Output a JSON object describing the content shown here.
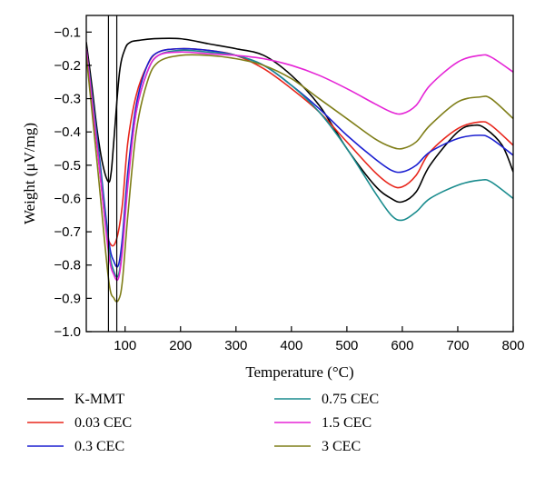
{
  "chart_data": {
    "type": "line",
    "title": "",
    "xlabel": "Temperature (°C)",
    "ylabel": "Weight (μV/mg)",
    "xlim": [
      30,
      800
    ],
    "ylim": [
      -1.0,
      -0.05
    ],
    "xticks": [
      100,
      200,
      300,
      400,
      500,
      600,
      700,
      800
    ],
    "xtick_labels": [
      "100",
      "200",
      "300",
      "400",
      "500",
      "600",
      "700",
      "800"
    ],
    "yticks": [
      -1.0,
      -0.9,
      -0.8,
      -0.7,
      -0.6,
      -0.5,
      -0.4,
      -0.3,
      -0.2,
      -0.1
    ],
    "ytick_labels": [
      "−1.0",
      "−0.9",
      "−0.8",
      "−0.7",
      "−0.6",
      "−0.5",
      "−0.4",
      "−0.3",
      "−0.2",
      "−0.1"
    ],
    "grid": false,
    "legend_position": "bottom",
    "vertical_lines": [
      70,
      85
    ],
    "series": [
      {
        "name": "K-MMT",
        "color": "#000000",
        "x": [
          30,
          40,
          50,
          60,
          70,
          75,
          80,
          90,
          100,
          110,
          125,
          150,
          200,
          250,
          300,
          350,
          400,
          450,
          500,
          550,
          580,
          600,
          625,
          650,
          700,
          730,
          750,
          780,
          800
        ],
        "y": [
          -0.13,
          -0.26,
          -0.4,
          -0.5,
          -0.55,
          -0.52,
          -0.42,
          -0.22,
          -0.15,
          -0.13,
          -0.125,
          -0.12,
          -0.12,
          -0.135,
          -0.15,
          -0.17,
          -0.23,
          -0.32,
          -0.45,
          -0.56,
          -0.6,
          -0.61,
          -0.58,
          -0.5,
          -0.4,
          -0.38,
          -0.39,
          -0.44,
          -0.52
        ]
      },
      {
        "name": "0.03 CEC",
        "color": "#e8261c",
        "x": [
          30,
          50,
          65,
          75,
          85,
          95,
          105,
          120,
          140,
          160,
          200,
          250,
          300,
          350,
          400,
          450,
          500,
          550,
          580,
          600,
          625,
          650,
          700,
          740,
          760,
          800
        ],
        "y": [
          -0.17,
          -0.45,
          -0.68,
          -0.74,
          -0.72,
          -0.62,
          -0.43,
          -0.29,
          -0.2,
          -0.16,
          -0.15,
          -0.155,
          -0.17,
          -0.21,
          -0.27,
          -0.34,
          -0.43,
          -0.52,
          -0.56,
          -0.565,
          -0.53,
          -0.46,
          -0.39,
          -0.37,
          -0.38,
          -0.44
        ]
      },
      {
        "name": "0.3 CEC",
        "color": "#1b1fd1",
        "x": [
          30,
          50,
          70,
          80,
          88,
          95,
          105,
          120,
          140,
          160,
          200,
          250,
          300,
          350,
          400,
          450,
          500,
          550,
          580,
          600,
          625,
          650,
          700,
          740,
          760,
          800
        ],
        "y": [
          -0.15,
          -0.42,
          -0.72,
          -0.79,
          -0.8,
          -0.72,
          -0.52,
          -0.32,
          -0.2,
          -0.16,
          -0.15,
          -0.155,
          -0.17,
          -0.2,
          -0.26,
          -0.33,
          -0.41,
          -0.48,
          -0.515,
          -0.52,
          -0.5,
          -0.46,
          -0.42,
          -0.41,
          -0.42,
          -0.47
        ]
      },
      {
        "name": "0.75 CEC",
        "color": "#1a8c8e",
        "x": [
          30,
          50,
          70,
          80,
          88,
          95,
          105,
          120,
          140,
          160,
          200,
          250,
          300,
          350,
          400,
          450,
          500,
          550,
          580,
          600,
          625,
          650,
          700,
          740,
          760,
          800
        ],
        "y": [
          -0.15,
          -0.43,
          -0.74,
          -0.82,
          -0.83,
          -0.75,
          -0.55,
          -0.34,
          -0.22,
          -0.17,
          -0.155,
          -0.16,
          -0.17,
          -0.2,
          -0.26,
          -0.34,
          -0.45,
          -0.58,
          -0.65,
          -0.665,
          -0.64,
          -0.6,
          -0.56,
          -0.545,
          -0.55,
          -0.6
        ]
      },
      {
        "name": "1.5 CEC",
        "color": "#e524d6",
        "x": [
          30,
          50,
          70,
          80,
          88,
          95,
          105,
          120,
          140,
          160,
          200,
          250,
          300,
          350,
          400,
          450,
          500,
          550,
          580,
          600,
          625,
          650,
          700,
          740,
          760,
          800
        ],
        "y": [
          -0.15,
          -0.45,
          -0.76,
          -0.83,
          -0.84,
          -0.76,
          -0.56,
          -0.34,
          -0.22,
          -0.17,
          -0.16,
          -0.165,
          -0.17,
          -0.18,
          -0.2,
          -0.23,
          -0.27,
          -0.315,
          -0.34,
          -0.345,
          -0.32,
          -0.26,
          -0.19,
          -0.17,
          -0.175,
          -0.22
        ]
      },
      {
        "name": "3 CEC",
        "color": "#7f7e18",
        "x": [
          30,
          50,
          70,
          80,
          88,
          95,
          105,
          120,
          140,
          160,
          200,
          250,
          300,
          350,
          400,
          450,
          500,
          550,
          580,
          600,
          625,
          650,
          700,
          740,
          760,
          800
        ],
        "y": [
          -0.17,
          -0.5,
          -0.84,
          -0.9,
          -0.905,
          -0.85,
          -0.65,
          -0.4,
          -0.25,
          -0.19,
          -0.17,
          -0.17,
          -0.18,
          -0.2,
          -0.24,
          -0.3,
          -0.36,
          -0.42,
          -0.445,
          -0.45,
          -0.43,
          -0.38,
          -0.31,
          -0.295,
          -0.3,
          -0.36
        ]
      }
    ]
  }
}
